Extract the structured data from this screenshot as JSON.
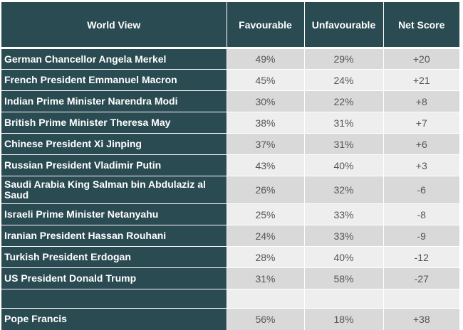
{
  "header": {
    "col_name": "World View",
    "col_favourable": "Favourable",
    "col_unfavourable": "Unfavourable",
    "col_net": "Net Score"
  },
  "rows": [
    {
      "name": "German Chancellor Angela Merkel",
      "favourable": "49%",
      "unfavourable": "29%",
      "net": "+20"
    },
    {
      "name": "French President Emmanuel Macron",
      "favourable": "45%",
      "unfavourable": "24%",
      "net": "+21"
    },
    {
      "name": "Indian Prime Minister Narendra Modi",
      "favourable": "30%",
      "unfavourable": "22%",
      "net": "+8"
    },
    {
      "name": "British Prime Minister Theresa May",
      "favourable": "38%",
      "unfavourable": "31%",
      "net": "+7"
    },
    {
      "name": "Chinese President Xi Jinping",
      "favourable": "37%",
      "unfavourable": "31%",
      "net": "+6"
    },
    {
      "name": "Russian President Vladimir Putin",
      "favourable": "43%",
      "unfavourable": "40%",
      "net": "+3"
    },
    {
      "name": "Saudi Arabia King Salman bin Abdulaziz al Saud",
      "favourable": "26%",
      "unfavourable": "32%",
      "net": "-6"
    },
    {
      "name": "Israeli Prime Minister Netanyahu",
      "favourable": "25%",
      "unfavourable": "33%",
      "net": "-8"
    },
    {
      "name": "Iranian President Hassan Rouhani",
      "favourable": "24%",
      "unfavourable": "33%",
      "net": "-9"
    },
    {
      "name": "Turkish President Erdogan",
      "favourable": "28%",
      "unfavourable": "40%",
      "net": "-12"
    },
    {
      "name": "US President Donald Trump",
      "favourable": "31%",
      "unfavourable": "58%",
      "net": "-27"
    }
  ],
  "extra_row": {
    "name": "Pope Francis",
    "favourable": "56%",
    "unfavourable": "18%",
    "net": "+38"
  }
}
